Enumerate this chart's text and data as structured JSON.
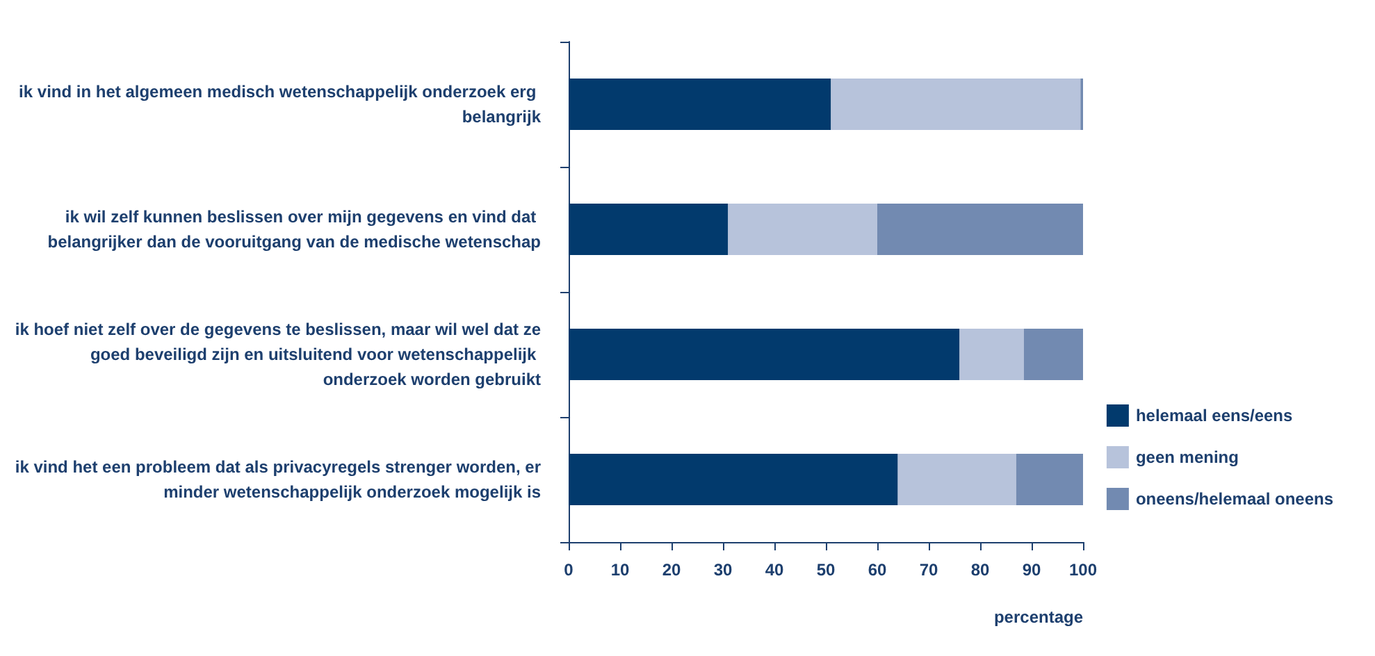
{
  "chart_data": {
    "type": "bar",
    "orientation": "horizontal",
    "stacked": true,
    "categories": [
      "ik vind in het algemeen medisch wetenschappelijk onderzoek erg belangrijk",
      "ik wil zelf kunnen beslissen over mijn gegevens en vind dat belangrijker dan de vooruitgang van de medische wetenschap",
      "ik hoef niet zelf over de gegevens te beslissen, maar wil wel dat ze goed beveiligd zijn en uitsluitend voor wetenschappelijk onderzoek worden gebruikt",
      "ik vind het een probleem dat als privacyregels strenger worden, er minder wetenschappelijk onderzoek mogelijk is"
    ],
    "series": [
      {
        "name": "helemaal eens/eens",
        "color": "#023a6d",
        "values": [
          51,
          31,
          76,
          64
        ]
      },
      {
        "name": "geen mening",
        "color": "#b7c3db",
        "values": [
          48.5,
          29,
          12.5,
          23
        ]
      },
      {
        "name": "oneens/helemaal oneens",
        "color": "#728ab1",
        "values": [
          0.5,
          40,
          11.5,
          13
        ]
      }
    ],
    "xlabel": "percentage",
    "xlim": [
      0,
      100
    ],
    "xticks": [
      0,
      10,
      20,
      30,
      40,
      50,
      60,
      70,
      80,
      90,
      100
    ],
    "grid": false,
    "legend": "right"
  }
}
